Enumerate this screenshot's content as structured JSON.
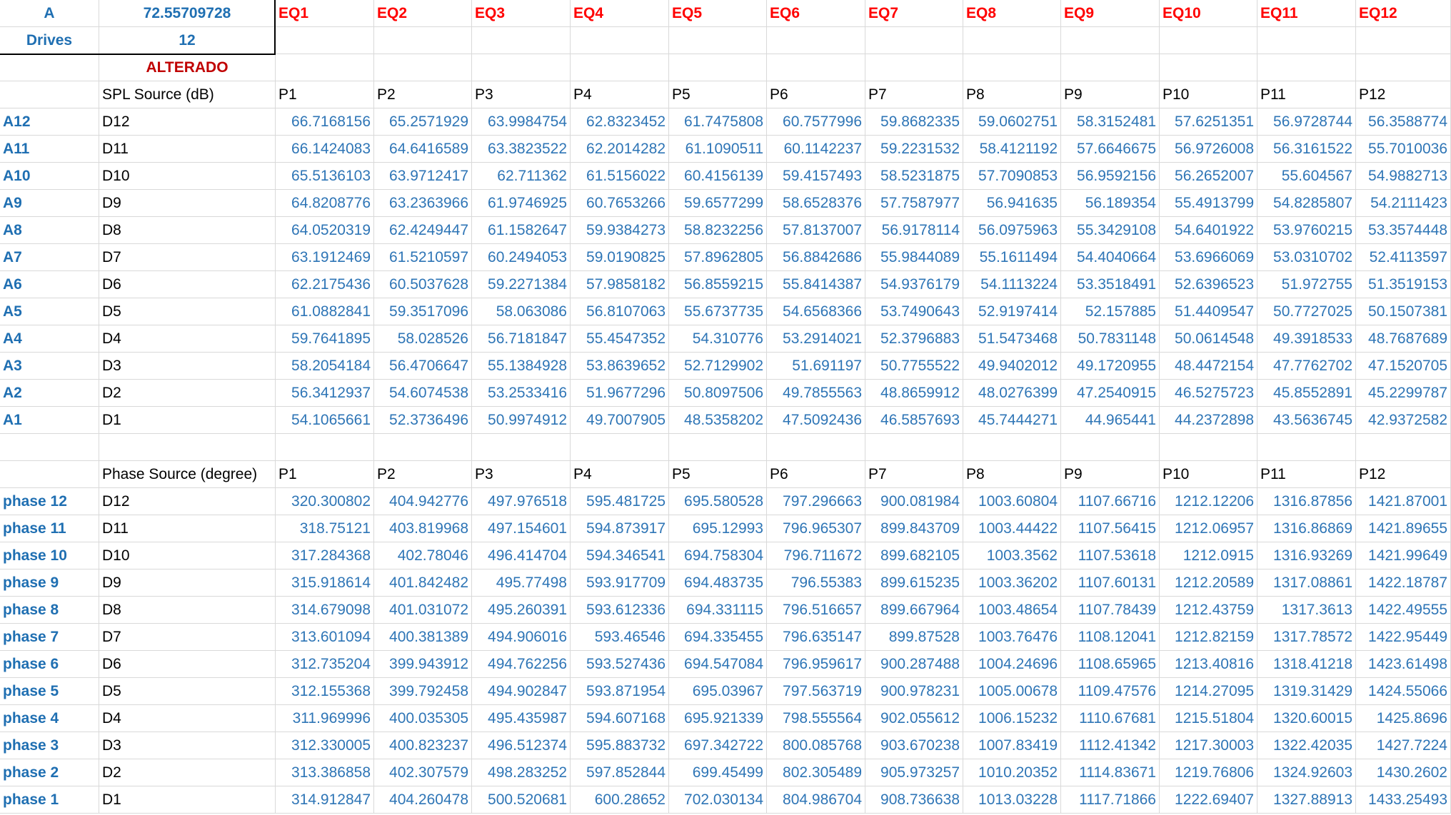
{
  "info": {
    "a_label": "A",
    "a_value": "72.55709728",
    "drives_label": "Drives",
    "drives_value": "12",
    "altered_label": "ALTERADO"
  },
  "eq_headers": [
    "EQ1",
    "EQ2",
    "EQ3",
    "EQ4",
    "EQ5",
    "EQ6",
    "EQ7",
    "EQ8",
    "EQ9",
    "EQ10",
    "EQ11",
    "EQ12"
  ],
  "spl": {
    "title": "SPL Source (dB)",
    "columns": [
      "P1",
      "P2",
      "P3",
      "P4",
      "P5",
      "P6",
      "P7",
      "P8",
      "P9",
      "P10",
      "P11",
      "P12"
    ],
    "rows": [
      {
        "label": "A12",
        "drive": "D12",
        "values": [
          "66.7168156",
          "65.2571929",
          "63.9984754",
          "62.8323452",
          "61.7475808",
          "60.7577996",
          "59.8682335",
          "59.0602751",
          "58.3152481",
          "57.6251351",
          "56.9728744",
          "56.3588774"
        ]
      },
      {
        "label": "A11",
        "drive": "D11",
        "values": [
          "66.1424083",
          "64.6416589",
          "63.3823522",
          "62.2014282",
          "61.1090511",
          "60.1142237",
          "59.2231532",
          "58.4121192",
          "57.6646675",
          "56.9726008",
          "56.3161522",
          "55.7010036"
        ]
      },
      {
        "label": "A10",
        "drive": "D10",
        "values": [
          "65.5136103",
          "63.9712417",
          "62.711362",
          "61.5156022",
          "60.4156139",
          "59.4157493",
          "58.5231875",
          "57.7090853",
          "56.9592156",
          "56.2652007",
          "55.604567",
          "54.9882713"
        ]
      },
      {
        "label": "A9",
        "drive": "D9",
        "values": [
          "64.8208776",
          "63.2363966",
          "61.9746925",
          "60.7653266",
          "59.6577299",
          "58.6528376",
          "57.7587977",
          "56.941635",
          "56.189354",
          "55.4913799",
          "54.8285807",
          "54.2111423"
        ]
      },
      {
        "label": "A8",
        "drive": "D8",
        "values": [
          "64.0520319",
          "62.4249447",
          "61.1582647",
          "59.9384273",
          "58.8232256",
          "57.8137007",
          "56.9178114",
          "56.0975963",
          "55.3429108",
          "54.6401922",
          "53.9760215",
          "53.3574448"
        ]
      },
      {
        "label": "A7",
        "drive": "D7",
        "values": [
          "63.1912469",
          "61.5210597",
          "60.2494053",
          "59.0190825",
          "57.8962805",
          "56.8842686",
          "55.9844089",
          "55.1611494",
          "54.4040664",
          "53.6966069",
          "53.0310702",
          "52.4113597"
        ]
      },
      {
        "label": "A6",
        "drive": "D6",
        "values": [
          "62.2175436",
          "60.5037628",
          "59.2271384",
          "57.9858182",
          "56.8559215",
          "55.8414387",
          "54.9376179",
          "54.1113224",
          "53.3518491",
          "52.6396523",
          "51.972755",
          "51.3519153"
        ]
      },
      {
        "label": "A5",
        "drive": "D5",
        "values": [
          "61.0882841",
          "59.3517096",
          "58.063086",
          "56.8107063",
          "55.6737735",
          "54.6568366",
          "53.7490643",
          "52.9197414",
          "52.157885",
          "51.4409547",
          "50.7727025",
          "50.1507381"
        ]
      },
      {
        "label": "A4",
        "drive": "D4",
        "values": [
          "59.7641895",
          "58.028526",
          "56.7181847",
          "55.4547352",
          "54.310776",
          "53.2914021",
          "52.3796883",
          "51.5473468",
          "50.7831148",
          "50.0614548",
          "49.3918533",
          "48.7687689"
        ]
      },
      {
        "label": "A3",
        "drive": "D3",
        "values": [
          "58.2054184",
          "56.4706647",
          "55.1384928",
          "53.8639652",
          "52.7129902",
          "51.691197",
          "50.7755522",
          "49.9402012",
          "49.1720955",
          "48.4472154",
          "47.7762702",
          "47.1520705"
        ]
      },
      {
        "label": "A2",
        "drive": "D2",
        "values": [
          "56.3412937",
          "54.6074538",
          "53.2533416",
          "51.9677296",
          "50.8097506",
          "49.7855563",
          "48.8659912",
          "48.0276399",
          "47.2540915",
          "46.5275723",
          "45.8552891",
          "45.2299787"
        ]
      },
      {
        "label": "A1",
        "drive": "D1",
        "values": [
          "54.1065661",
          "52.3736496",
          "50.9974912",
          "49.7007905",
          "48.5358202",
          "47.5092436",
          "46.5857693",
          "45.7444271",
          "44.965441",
          "44.2372898",
          "43.5636745",
          "42.9372582"
        ]
      }
    ]
  },
  "phase": {
    "title": "Phase Source (degree)",
    "columns": [
      "P1",
      "P2",
      "P3",
      "P4",
      "P5",
      "P6",
      "P7",
      "P8",
      "P9",
      "P10",
      "P11",
      "P12"
    ],
    "rows": [
      {
        "label": "phase 12",
        "drive": "D12",
        "values": [
          "320.300802",
          "404.942776",
          "497.976518",
          "595.481725",
          "695.580528",
          "797.296663",
          "900.081984",
          "1003.60804",
          "1107.66716",
          "1212.12206",
          "1316.87856",
          "1421.87001"
        ]
      },
      {
        "label": "phase 11",
        "drive": "D11",
        "values": [
          "318.75121",
          "403.819968",
          "497.154601",
          "594.873917",
          "695.12993",
          "796.965307",
          "899.843709",
          "1003.44422",
          "1107.56415",
          "1212.06957",
          "1316.86869",
          "1421.89655"
        ]
      },
      {
        "label": "phase 10",
        "drive": "D10",
        "values": [
          "317.284368",
          "402.78046",
          "496.414704",
          "594.346541",
          "694.758304",
          "796.711672",
          "899.682105",
          "1003.3562",
          "1107.53618",
          "1212.0915",
          "1316.93269",
          "1421.99649"
        ]
      },
      {
        "label": "phase 9",
        "drive": "D9",
        "values": [
          "315.918614",
          "401.842482",
          "495.77498",
          "593.917709",
          "694.483735",
          "796.55383",
          "899.615235",
          "1003.36202",
          "1107.60131",
          "1212.20589",
          "1317.08861",
          "1422.18787"
        ]
      },
      {
        "label": "phase 8",
        "drive": "D8",
        "values": [
          "314.679098",
          "401.031072",
          "495.260391",
          "593.612336",
          "694.331115",
          "796.516657",
          "899.667964",
          "1003.48654",
          "1107.78439",
          "1212.43759",
          "1317.3613",
          "1422.49555"
        ]
      },
      {
        "label": "phase 7",
        "drive": "D7",
        "values": [
          "313.601094",
          "400.381389",
          "494.906016",
          "593.46546",
          "694.335455",
          "796.635147",
          "899.87528",
          "1003.76476",
          "1108.12041",
          "1212.82159",
          "1317.78572",
          "1422.95449"
        ]
      },
      {
        "label": "phase 6",
        "drive": "D6",
        "values": [
          "312.735204",
          "399.943912",
          "494.762256",
          "593.527436",
          "694.547084",
          "796.959617",
          "900.287488",
          "1004.24696",
          "1108.65965",
          "1213.40816",
          "1318.41218",
          "1423.61498"
        ]
      },
      {
        "label": "phase 5",
        "drive": "D5",
        "values": [
          "312.155368",
          "399.792458",
          "494.902847",
          "593.871954",
          "695.03967",
          "797.563719",
          "900.978231",
          "1005.00678",
          "1109.47576",
          "1214.27095",
          "1319.31429",
          "1424.55066"
        ]
      },
      {
        "label": "phase 4",
        "drive": "D4",
        "values": [
          "311.969996",
          "400.035305",
          "495.435987",
          "594.607168",
          "695.921339",
          "798.555564",
          "902.055612",
          "1006.15232",
          "1110.67681",
          "1215.51804",
          "1320.60015",
          "1425.8696"
        ]
      },
      {
        "label": "phase 3",
        "drive": "D3",
        "values": [
          "312.330005",
          "400.823237",
          "496.512374",
          "595.883732",
          "697.342722",
          "800.085768",
          "903.670238",
          "1007.83419",
          "1112.41342",
          "1217.30003",
          "1322.42035",
          "1427.7224"
        ]
      },
      {
        "label": "phase 2",
        "drive": "D2",
        "values": [
          "313.386858",
          "402.307579",
          "498.283252",
          "597.852844",
          "699.45499",
          "802.305489",
          "905.973257",
          "1010.20352",
          "1114.83671",
          "1219.76806",
          "1324.92603",
          "1430.2602"
        ]
      },
      {
        "label": "phase 1",
        "drive": "D1",
        "values": [
          "314.912847",
          "404.260478",
          "500.520681",
          "600.28652",
          "702.030134",
          "804.986704",
          "908.736638",
          "1013.03228",
          "1117.71866",
          "1222.69407",
          "1327.88913",
          "1433.25493"
        ]
      }
    ]
  }
}
